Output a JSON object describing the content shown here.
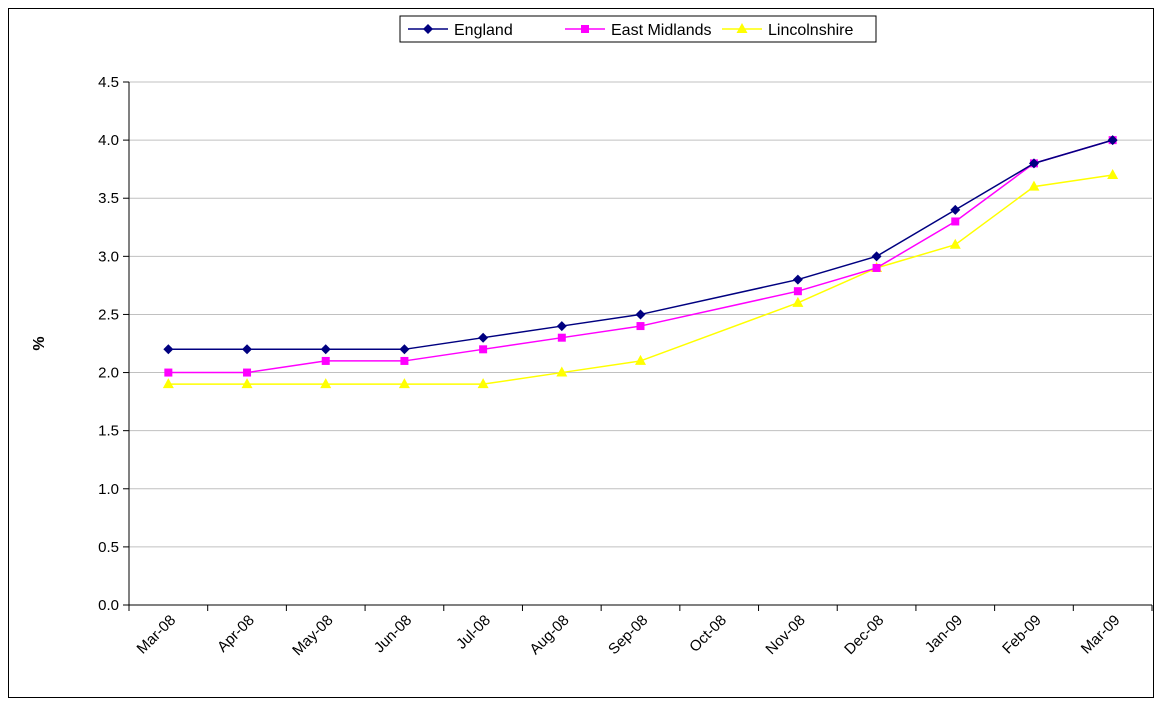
{
  "chart_data": {
    "type": "line",
    "title": "",
    "xlabel": "",
    "ylabel": "%",
    "ylim": [
      0,
      4.5
    ],
    "y_ticks": [
      "0.0",
      "0.5",
      "1.0",
      "1.5",
      "2.0",
      "2.5",
      "3.0",
      "3.5",
      "4.0",
      "4.5"
    ],
    "grid": true,
    "legend_position": "top-center",
    "categories": [
      "Mar-08",
      "Apr-08",
      "May-08",
      "Jun-08",
      "Jul-08",
      "Aug-08",
      "Sep-08",
      "Oct-08",
      "Nov-08",
      "Dec-08",
      "Jan-09",
      "Feb-09",
      "Mar-09"
    ],
    "series": [
      {
        "name": "England",
        "color": "#000080",
        "marker": "diamond",
        "values": [
          2.2,
          2.2,
          2.2,
          2.2,
          2.3,
          2.4,
          2.5,
          null,
          2.8,
          3.0,
          3.4,
          3.8,
          4.0
        ]
      },
      {
        "name": "East Midlands",
        "color": "#FF00FF",
        "marker": "square",
        "values": [
          2.0,
          2.0,
          2.1,
          2.1,
          2.2,
          2.3,
          2.4,
          null,
          2.7,
          2.9,
          3.3,
          3.8,
          4.0
        ]
      },
      {
        "name": "Lincolnshire",
        "color": "#FFFF00",
        "marker": "triangle",
        "values": [
          1.9,
          1.9,
          1.9,
          1.9,
          1.9,
          2.0,
          2.1,
          null,
          2.6,
          2.9,
          3.1,
          3.6,
          3.7
        ]
      }
    ]
  }
}
